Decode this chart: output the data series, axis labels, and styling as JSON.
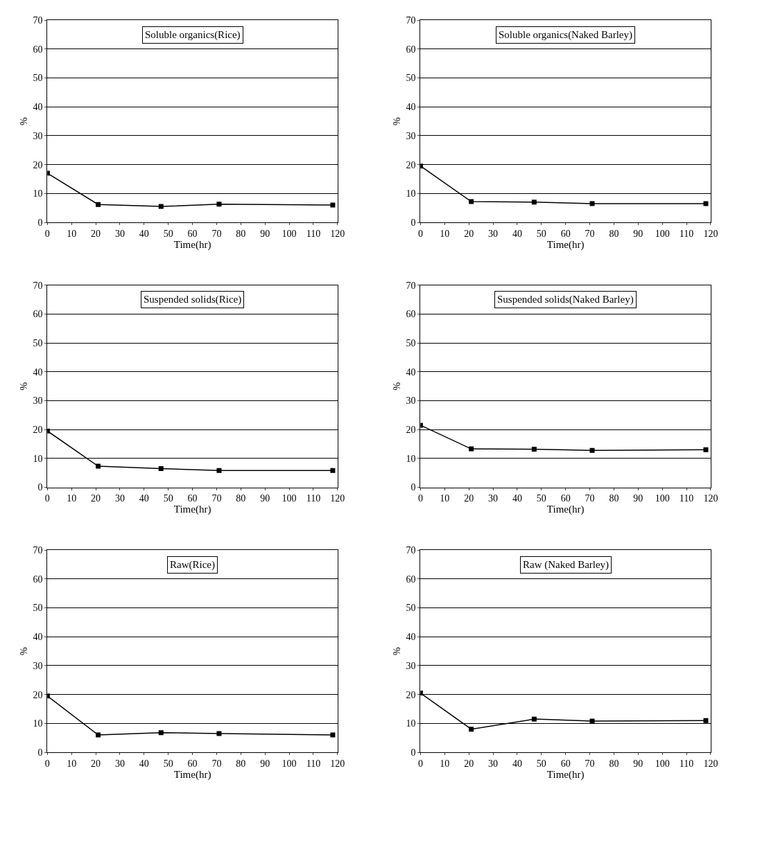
{
  "chart_data": [
    {
      "type": "line",
      "title": "Soluble organics(Rice)",
      "xlabel": "Time(hr)",
      "ylabel": "%",
      "x": [
        0,
        21,
        47,
        71,
        118
      ],
      "series": [
        {
          "color": "#000000",
          "values": [
            17,
            6.2,
            5.5,
            6.3,
            6
          ]
        }
      ],
      "xlim": [
        0,
        120
      ],
      "xticks": [
        0,
        10,
        20,
        30,
        40,
        50,
        60,
        70,
        80,
        90,
        100,
        110,
        120
      ],
      "ylim": [
        0,
        70
      ],
      "yticks": [
        0,
        10,
        20,
        30,
        40,
        50,
        60,
        70
      ],
      "grid": "y",
      "marker": "square"
    },
    {
      "type": "line",
      "title": "Soluble organics(Naked Barley)",
      "xlabel": "Time(hr)",
      "ylabel": "%",
      "x": [
        0,
        21,
        47,
        71,
        118
      ],
      "series": [
        {
          "color": "#000000",
          "values": [
            19.5,
            7.2,
            7,
            6.5,
            6.5
          ]
        }
      ],
      "xlim": [
        0,
        120
      ],
      "xticks": [
        0,
        10,
        20,
        30,
        40,
        50,
        60,
        70,
        80,
        90,
        100,
        110,
        120
      ],
      "ylim": [
        0,
        70
      ],
      "yticks": [
        0,
        10,
        20,
        30,
        40,
        50,
        60,
        70
      ],
      "grid": "y",
      "marker": "square"
    },
    {
      "type": "line",
      "title": "Suspended solids(Rice)",
      "xlabel": "Time(hr)",
      "ylabel": "%",
      "x": [
        0,
        21,
        47,
        71,
        118
      ],
      "series": [
        {
          "color": "#000000",
          "values": [
            19.5,
            7.3,
            6.5,
            5.8,
            5.8
          ]
        }
      ],
      "xlim": [
        0,
        120
      ],
      "xticks": [
        0,
        10,
        20,
        30,
        40,
        50,
        60,
        70,
        80,
        90,
        100,
        110,
        120
      ],
      "ylim": [
        0,
        70
      ],
      "yticks": [
        0,
        10,
        20,
        30,
        40,
        50,
        60,
        70
      ],
      "grid": "y",
      "marker": "square"
    },
    {
      "type": "line",
      "title": "Suspended solids(Naked Barley)",
      "xlabel": "Time(hr)",
      "ylabel": "%",
      "x": [
        0,
        21,
        47,
        71,
        118
      ],
      "series": [
        {
          "color": "#000000",
          "values": [
            21.5,
            13.3,
            13.2,
            12.8,
            13
          ]
        }
      ],
      "xlim": [
        0,
        120
      ],
      "xticks": [
        0,
        10,
        20,
        30,
        40,
        50,
        60,
        70,
        80,
        90,
        100,
        110,
        120
      ],
      "ylim": [
        0,
        70
      ],
      "yticks": [
        0,
        10,
        20,
        30,
        40,
        50,
        60,
        70
      ],
      "grid": "y",
      "marker": "square"
    },
    {
      "type": "line",
      "title": "Raw(Rice)",
      "xlabel": "Time(hr)",
      "ylabel": "%",
      "x": [
        0,
        21,
        47,
        71,
        118
      ],
      "series": [
        {
          "color": "#000000",
          "values": [
            19.5,
            6,
            6.8,
            6.5,
            6
          ]
        }
      ],
      "xlim": [
        0,
        120
      ],
      "xticks": [
        0,
        10,
        20,
        30,
        40,
        50,
        60,
        70,
        80,
        90,
        100,
        110,
        120
      ],
      "ylim": [
        0,
        70
      ],
      "yticks": [
        0,
        10,
        20,
        30,
        40,
        50,
        60,
        70
      ],
      "grid": "y",
      "marker": "square"
    },
    {
      "type": "line",
      "title": "Raw (Naked Barley)",
      "xlabel": "Time(hr)",
      "ylabel": "%",
      "x": [
        0,
        21,
        47,
        71,
        118
      ],
      "series": [
        {
          "color": "#000000",
          "values": [
            20.5,
            8,
            11.5,
            10.8,
            11
          ]
        }
      ],
      "xlim": [
        0,
        120
      ],
      "xticks": [
        0,
        10,
        20,
        30,
        40,
        50,
        60,
        70,
        80,
        90,
        100,
        110,
        120
      ],
      "ylim": [
        0,
        70
      ],
      "yticks": [
        0,
        10,
        20,
        30,
        40,
        50,
        60,
        70
      ],
      "grid": "y",
      "marker": "square"
    }
  ]
}
